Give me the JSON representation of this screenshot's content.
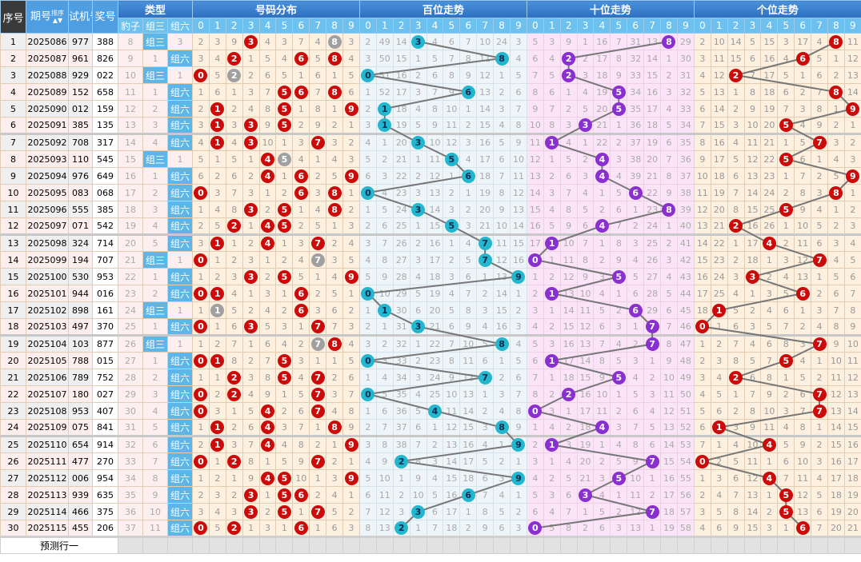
{
  "headers": {
    "no": "序号",
    "issue": "期号",
    "sort": "排序",
    "test": "试机号",
    "prize": "奖号",
    "type": "类型",
    "dist": "号码分布",
    "bai": "百位走势",
    "shi": "十位走势",
    "ge": "个位走势",
    "types": [
      "豹子",
      "组三",
      "组六"
    ],
    "digits": [
      "0",
      "1",
      "2",
      "3",
      "4",
      "5",
      "6",
      "7",
      "8",
      "9"
    ]
  },
  "predict_label": "预测行一",
  "colors": {
    "dist": "#cc0a0a",
    "dup": "#a0a0a0",
    "bai": "#22b6cf",
    "shi": "#8a2fd0",
    "ge": "#cc0a0a",
    "type_hit": "#5db6e6"
  },
  "rows": [
    {
      "n": "1",
      "issue": "2025086",
      "test": "977",
      "prize": "388",
      "type": [
        "8",
        "组三",
        "3"
      ],
      "dist": "2 3 9 3 4 3 7 4 8 3",
      "bai": "2 49 14 3 4 6 7 10 24 3",
      "shi": "5 3 9 1 16 7 31 13 8 29",
      "ge": "2 10 14 5 15 3 17 4 8 11"
    },
    {
      "n": "2",
      "issue": "2025087",
      "test": "961",
      "prize": "826",
      "type": [
        "9",
        "1",
        "组六"
      ],
      "dist": "3 4 2 1 5 4 6 5 8 4",
      "bai": "3 50 15 1 5 7 8 11 8 4",
      "shi": "6 4 2 2 17 8 32 14 1 30",
      "ge": "3 11 15 6 16 4 6 5 1 12"
    },
    {
      "n": "3",
      "issue": "2025088",
      "test": "929",
      "prize": "022",
      "type": [
        "10",
        "组三",
        "1"
      ],
      "dist": "0 5 2 2 6 5 1 6 1 5",
      "bai": "0 51 16 2 6 8 9 12 1 5",
      "shi": "7 5 2 3 18 9 33 15 2 31",
      "ge": "4 12 2 7 17 5 1 6 2 13"
    },
    {
      "n": "4",
      "issue": "2025089",
      "test": "152",
      "prize": "658",
      "type": [
        "11",
        "1",
        "组六"
      ],
      "dist": "1 6 1 3 7 5 6 7 8 6",
      "bai": "1 52 17 3 7 9 6 13 2 6",
      "shi": "8 6 1 4 19 5 34 16 3 32",
      "ge": "5 13 1 8 18 6 2 7 8 14"
    },
    {
      "n": "5",
      "issue": "2025090",
      "test": "012",
      "prize": "159",
      "type": [
        "12",
        "2",
        "组六"
      ],
      "dist": "2 1 2 4 8 5 1 8 1 9",
      "bai": "2 1 18 4 8 10 1 14 3 7",
      "shi": "9 7 2 5 20 5 35 17 4 33",
      "ge": "6 14 2 9 19 7 3 8 1 9"
    },
    {
      "n": "6",
      "issue": "2025091",
      "test": "385",
      "prize": "135",
      "type": [
        "13",
        "3",
        "组六"
      ],
      "dist": "3 1 3 3 9 5 2 9 2 1",
      "bai": "3 1 19 5 9 11 2 15 4 8",
      "shi": "10 8 3 3 21 1 36 18 5 34",
      "ge": "7 15 3 10 20 5 4 9 2 1"
    },
    {
      "n": "7",
      "issue": "2025092",
      "test": "708",
      "prize": "317",
      "type": [
        "14",
        "4",
        "组六"
      ],
      "dist": "4 1 4 3 10 1 3 7 3 2",
      "bai": "4 1 20 3 10 12 3 16 5 9",
      "shi": "11 1 4 1 22 2 37 19 6 35",
      "ge": "8 16 4 11 21 1 5 7 3 2"
    },
    {
      "n": "8",
      "issue": "2025093",
      "test": "110",
      "prize": "545",
      "type": [
        "15",
        "组三",
        "1"
      ],
      "dist": "5 1 5 1 4 5 4 1 4 3",
      "bai": "5 2 21 1 11 5 4 17 6 10",
      "shi": "12 1 5 2 4 3 38 20 7 36",
      "ge": "9 17 5 12 22 5 6 1 4 3"
    },
    {
      "n": "9",
      "issue": "2025094",
      "test": "976",
      "prize": "649",
      "type": [
        "16",
        "1",
        "组六"
      ],
      "dist": "6 2 6 2 4 1 6 2 5 9",
      "bai": "6 3 22 2 12 1 6 18 7 11",
      "shi": "13 2 6 3 4 4 39 21 8 37",
      "ge": "10 18 6 13 23 1 7 2 5 9"
    },
    {
      "n": "10",
      "issue": "2025095",
      "test": "083",
      "prize": "068",
      "type": [
        "17",
        "2",
        "组六"
      ],
      "dist": "0 3 7 3 1 2 6 3 8 1",
      "bai": "0 4 23 3 13 2 1 19 8 12",
      "shi": "14 3 7 4 1 5 6 22 9 38",
      "ge": "11 19 7 14 24 2 8 3 8 1"
    },
    {
      "n": "11",
      "issue": "2025096",
      "test": "555",
      "prize": "385",
      "type": [
        "18",
        "3",
        "组六"
      ],
      "dist": "1 4 8 3 2 5 1 4 8 2",
      "bai": "1 5 24 3 14 3 2 20 9 13",
      "shi": "15 4 8 5 2 6 1 23 8 39",
      "ge": "12 20 8 15 25 5 9 4 1 2"
    },
    {
      "n": "12",
      "issue": "2025097",
      "test": "071",
      "prize": "542",
      "type": [
        "19",
        "4",
        "组六"
      ],
      "dist": "2 5 2 1 4 5 2 5 1 3",
      "bai": "2 6 25 1 15 5 3 21 10 14",
      "shi": "16 5 9 6 4 7 2 24 1 40",
      "ge": "13 21 2 16 26 1 10 5 2 3"
    },
    {
      "n": "13",
      "issue": "2025098",
      "test": "324",
      "prize": "714",
      "type": [
        "20",
        "5",
        "组六"
      ],
      "dist": "3 1 1 2 4 1 3 7 2 4",
      "bai": "3 7 26 2 16 1 4 7 11 15",
      "shi": "17 1 10 7 1 8 3 25 2 41",
      "ge": "14 22 1 17 4 2 11 6 3 4"
    },
    {
      "n": "14",
      "issue": "2025099",
      "test": "194",
      "prize": "707",
      "type": [
        "21",
        "组三",
        "1"
      ],
      "dist": "0 1 2 3 1 2 4 7 3 5",
      "bai": "4 8 27 3 17 2 5 7 12 16",
      "shi": "0 1 11 8 2 9 4 26 3 42",
      "ge": "15 23 2 18 1 3 12 7 4 5"
    },
    {
      "n": "15",
      "issue": "2025100",
      "test": "530",
      "prize": "953",
      "type": [
        "22",
        "1",
        "组六"
      ],
      "dist": "1 2 3 3 2 5 5 1 4 9",
      "bai": "5 9 28 4 18 3 6 1 13 9",
      "shi": "1 2 12 9 3 5 5 27 4 43",
      "ge": "16 24 3 3 2 4 13 1 5 6"
    },
    {
      "n": "16",
      "issue": "2025101",
      "test": "944",
      "prize": "016",
      "type": [
        "23",
        "2",
        "组六"
      ],
      "dist": "0 1 4 1 3 1 6 2 5 1",
      "bai": "0 10 29 5 19 4 7 2 14 1",
      "shi": "2 1 13 10 4 1 6 28 5 44",
      "ge": "17 25 4 1 3 5 6 2 6 7"
    },
    {
      "n": "17",
      "issue": "2025102",
      "test": "898",
      "prize": "161",
      "type": [
        "24",
        "组三",
        "1"
      ],
      "dist": "1 1 5 2 4 2 6 3 6 2",
      "bai": "1 1 30 6 20 5 8 3 15 2",
      "shi": "3 1 14 11 5 2 6 29 6 45",
      "ge": "18 1 5 2 4 6 1 3 7 8"
    },
    {
      "n": "18",
      "issue": "2025103",
      "test": "497",
      "prize": "370",
      "type": [
        "25",
        "1",
        "组六"
      ],
      "dist": "0 1 6 3 5 3 1 7 7 3",
      "bai": "2 1 31 3 21 6 9 4 16 3",
      "shi": "4 2 15 12 6 3 1 7 7 46",
      "ge": "0 1 6 3 5 7 2 4 8 9"
    },
    {
      "n": "19",
      "issue": "2025104",
      "test": "103",
      "prize": "877",
      "type": [
        "26",
        "组三",
        "1"
      ],
      "dist": "1 2 7 1 6 4 2 7 8 4",
      "bai": "3 2 32 1 22 7 10 5 8 4",
      "shi": "5 3 16 13 7 4 2 7 8 47",
      "ge": "1 2 7 4 6 8 3 7 9 10"
    },
    {
      "n": "20",
      "issue": "2025105",
      "test": "788",
      "prize": "015",
      "type": [
        "27",
        "1",
        "组六"
      ],
      "dist": "0 1 8 2 7 5 3 1 1 5",
      "bai": "0 3 33 2 23 8 11 6 1 5",
      "shi": "6 1 17 14 8 5 3 1 9 48",
      "ge": "2 3 8 5 7 5 4 1 10 11"
    },
    {
      "n": "21",
      "issue": "2025106",
      "test": "789",
      "prize": "752",
      "type": [
        "28",
        "2",
        "组六"
      ],
      "dist": "1 1 2 3 8 5 4 7 2 6",
      "bai": "1 4 34 3 24 9 12 7 2 6",
      "shi": "7 1 18 15 9 5 4 2 10 49",
      "ge": "3 4 2 6 8 1 5 2 11 12"
    },
    {
      "n": "22",
      "issue": "2025107",
      "test": "180",
      "prize": "027",
      "type": [
        "29",
        "3",
        "组六"
      ],
      "dist": "0 2 2 4 9 1 5 7 3 7",
      "bai": "0 5 35 4 25 10 13 1 3 7",
      "shi": "8 2 2 16 10 1 5 3 11 50",
      "ge": "4 5 1 7 9 2 6 7 12 13"
    },
    {
      "n": "23",
      "issue": "2025108",
      "test": "953",
      "prize": "407",
      "type": [
        "30",
        "4",
        "组六"
      ],
      "dist": "0 3 1 5 4 2 6 7 4 8",
      "bai": "1 6 36 5 4 11 14 2 4 8",
      "shi": "0 3 1 17 11 2 6 4 12 51",
      "ge": "5 6 2 8 10 3 7 7 13 14"
    },
    {
      "n": "24",
      "issue": "2025109",
      "test": "075",
      "prize": "841",
      "type": [
        "31",
        "5",
        "组六"
      ],
      "dist": "1 1 2 6 4 3 7 1 8 9",
      "bai": "2 7 37 6 1 12 15 3 8 9",
      "shi": "1 4 2 18 4 3 7 5 13 52",
      "ge": "6 1 3 9 11 4 8 1 14 15"
    },
    {
      "n": "25",
      "issue": "2025110",
      "test": "654",
      "prize": "914",
      "type": [
        "32",
        "6",
        "组六"
      ],
      "dist": "2 1 3 7 4 4 8 2 1 9",
      "bai": "3 8 38 7 2 13 16 4 1 9",
      "shi": "2 1 3 19 1 4 8 6 14 53",
      "ge": "7 1 4 10 4 5 9 2 15 16"
    },
    {
      "n": "26",
      "issue": "2025111",
      "test": "477",
      "prize": "270",
      "type": [
        "33",
        "7",
        "组六"
      ],
      "dist": "0 1 2 8 1 5 9 7 2 1",
      "bai": "4 9 2 8 3 14 17 5 2 1",
      "shi": "3 1 4 20 2 5 9 7 15 54",
      "ge": "0 2 5 11 1 6 10 3 16 17"
    },
    {
      "n": "27",
      "issue": "2025112",
      "test": "006",
      "prize": "954",
      "type": [
        "34",
        "8",
        "组六"
      ],
      "dist": "1 2 1 9 4 5 10 1 3 9",
      "bai": "5 10 1 9 4 15 18 6 3 9",
      "shi": "4 2 5 21 3 5 10 1 16 55",
      "ge": "1 3 6 12 4 7 11 4 17 18"
    },
    {
      "n": "28",
      "issue": "2025113",
      "test": "939",
      "prize": "635",
      "type": [
        "35",
        "9",
        "组六"
      ],
      "dist": "2 3 2 3 1 5 6 2 4 1",
      "bai": "6 11 2 10 5 16 6 7 4 1",
      "shi": "5 3 6 3 4 1 11 2 17 56",
      "ge": "2 4 7 13 1 5 12 5 18 19"
    },
    {
      "n": "29",
      "issue": "2025114",
      "test": "466",
      "prize": "375",
      "type": [
        "36",
        "10",
        "组六"
      ],
      "dist": "3 4 3 3 2 5 1 7 5 2",
      "bai": "7 12 3 3 6 17 1 8 5 2",
      "shi": "6 4 7 1 5 2 12 7 18 57",
      "ge": "3 5 8 14 2 5 13 6 19 20"
    },
    {
      "n": "30",
      "issue": "2025115",
      "test": "455",
      "prize": "206",
      "type": [
        "37",
        "11",
        "组六"
      ],
      "dist": "0 5 2 1 3 1 6 1 6 3",
      "bai": "8 13 2 1 7 18 2 9 6 3",
      "shi": "0 5 8 2 6 3 13 1 19 58",
      "ge": "4 6 9 15 3 1 6 7 20 21"
    }
  ]
}
